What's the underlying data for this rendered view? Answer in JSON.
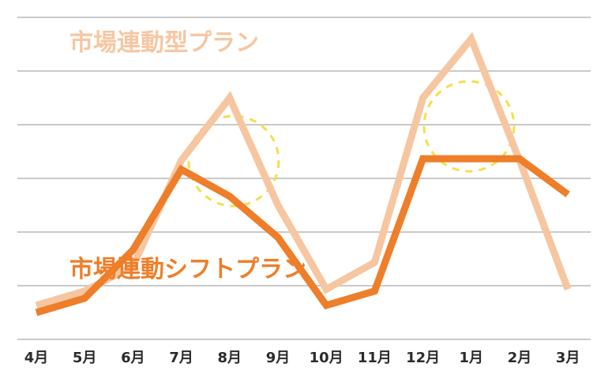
{
  "chart_data": {
    "type": "line",
    "categories": [
      "4月",
      "5月",
      "6月",
      "7月",
      "8月",
      "9月",
      "10月",
      "11月",
      "12月",
      "1月",
      "2月",
      "3月"
    ],
    "series": [
      {
        "name": "市場連動型プラン",
        "color": "#f6c6a1",
        "values": [
          0.95,
          1.35,
          2.05,
          5.0,
          6.75,
          3.75,
          1.4,
          2.15,
          6.75,
          8.4,
          5.0,
          1.4
        ]
      },
      {
        "name": "市場連動シフトプラン",
        "color": "#ee7e29",
        "values": [
          0.75,
          1.15,
          2.5,
          4.75,
          4.0,
          2.85,
          0.95,
          1.35,
          5.05,
          5.05,
          5.05,
          4.05
        ]
      }
    ],
    "highlight_color": "#f4df4a",
    "title": "",
    "xlabel": "",
    "ylabel": "",
    "ylim": [
      0,
      9
    ],
    "grid": true,
    "legend": "inline-labels"
  }
}
